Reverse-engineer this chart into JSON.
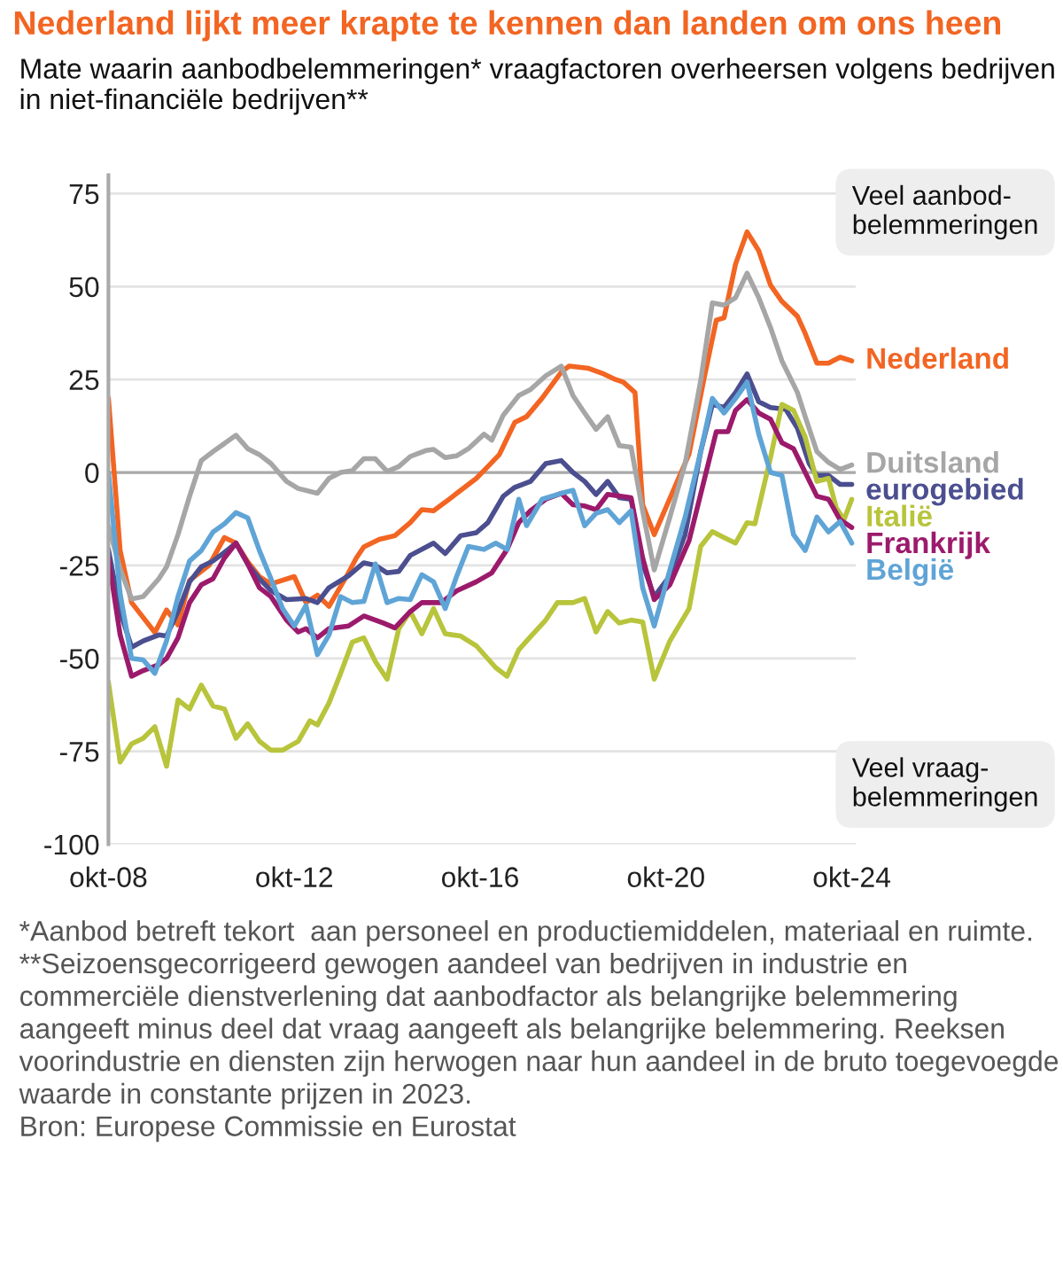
{
  "chart_data": {
    "type": "line",
    "title": "Nederland lijkt meer krapte te kennen dan landen om ons heen",
    "subtitle": "Mate waarin aanbodbelemmeringen* vraagfactoren overheersen volgens bedrijven in niet-financiële bedrijven**",
    "annotations": [
      "Veel aanbod-\nbelemmeringen",
      "Veel vraag-\nbelemmeringen",
      "*Aanbod betreft tekort  aan personeel en productiemiddelen, materiaal en ruimte.",
      "**Seizoensgecorrigeerd gewogen aandeel van bedrijven in industrie en commerciële dienstverlening dat aanbodfactor als belangrijke belemmering aangeeft minus deel dat vraag aangeeft als belangrijke belemmering. Reeksen voorindustrie en diensten zijn herwogen naar hun aandeel in de bruto toegevoegde waarde in constante prijzen in 2023.",
      "Bron: Europese Commissie en Eurostat"
    ],
    "xlim": [
      "2008-10",
      "2024-11"
    ],
    "xticks": [
      {
        "value": "2008-10",
        "label": "okt-08"
      },
      {
        "value": "2012-10",
        "label": "okt-12"
      },
      {
        "value": "2016-10",
        "label": "okt-16"
      },
      {
        "value": "2020-10",
        "label": "okt-20"
      },
      {
        "value": "2024-10",
        "label": "okt-24"
      }
    ],
    "ylim": [
      -100,
      80
    ],
    "yticks": [
      -100,
      -75,
      -50,
      -25,
      0,
      25,
      50,
      75
    ],
    "grid": "y",
    "ref_lines": [
      {
        "axis": "y",
        "value": 0,
        "color": "#aaaaaa"
      }
    ],
    "series": [
      {
        "name": "Nederland",
        "color": "#f26522",
        "x": [
          "2008-10",
          "2009-01",
          "2009-04",
          "2009-10",
          "2010-01",
          "2010-04",
          "2010-07",
          "2010-12",
          "2011-04",
          "2011-07",
          "2011-10",
          "2012-01",
          "2012-04",
          "2012-07",
          "2012-10",
          "2013-01",
          "2013-04",
          "2013-07",
          "2013-12",
          "2014-02",
          "2014-04",
          "2014-08",
          "2014-12",
          "2015-04",
          "2015-07",
          "2015-10",
          "2016-01",
          "2016-04",
          "2016-09",
          "2016-12",
          "2017-03",
          "2017-07",
          "2017-10",
          "2018-02",
          "2018-07",
          "2018-09",
          "2019-02",
          "2019-06",
          "2019-09",
          "2019-11",
          "2020-02",
          "2020-04",
          "2020-07",
          "2020-11",
          "2021-04",
          "2021-08",
          "2021-11",
          "2022-01",
          "2022-04",
          "2022-07",
          "2022-10",
          "2023-01",
          "2023-04",
          "2023-08",
          "2023-10",
          "2024-01",
          "2024-04",
          "2024-07",
          "2024-10"
        ],
        "values": [
          20,
          -21,
          -35,
          -43,
          -37,
          -41,
          -29,
          -25,
          -17.5,
          -19,
          -24,
          -28,
          -30,
          -29,
          -28,
          -35,
          -33,
          -36,
          -27,
          -23,
          -20,
          -18,
          -17,
          -13.5,
          -10,
          -10.3,
          -8,
          -5.6,
          -1.6,
          1.6,
          4.8,
          13.5,
          15,
          20,
          27,
          28.6,
          28,
          26.5,
          25,
          24.3,
          21.5,
          -8.7,
          -16.7,
          -7,
          5,
          26,
          41,
          41.6,
          56,
          64.7,
          59.6,
          50.4,
          46,
          42,
          37.4,
          29.4,
          29.4,
          31,
          30
        ]
      },
      {
        "name": "Duitsland",
        "color": "#a6a6a6",
        "x": [
          "2008-10",
          "2009-01",
          "2009-04",
          "2009-07",
          "2009-11",
          "2010-01",
          "2010-04",
          "2010-07",
          "2010-10",
          "2011-01",
          "2011-07",
          "2011-10",
          "2012-01",
          "2012-04",
          "2012-08",
          "2012-11",
          "2013-04",
          "2013-07",
          "2013-10",
          "2014-01",
          "2014-04",
          "2014-07",
          "2014-10",
          "2015-01",
          "2015-04",
          "2015-08",
          "2015-10",
          "2016-01",
          "2016-04",
          "2016-07",
          "2016-11",
          "2017-01",
          "2017-04",
          "2017-08",
          "2017-11",
          "2018-03",
          "2018-07",
          "2018-10",
          "2019-01",
          "2019-04",
          "2019-07",
          "2019-10",
          "2020-01",
          "2020-04",
          "2020-07",
          "2020-11",
          "2021-03",
          "2021-07",
          "2021-10",
          "2022-01",
          "2022-04",
          "2022-07",
          "2022-10",
          "2023-01",
          "2023-04",
          "2023-08",
          "2023-10",
          "2024-01",
          "2024-04",
          "2024-07",
          "2024-10"
        ],
        "values": [
          -14.3,
          -26,
          -34,
          -33.4,
          -28.6,
          -25.4,
          -16.7,
          -6.4,
          3.2,
          5.6,
          10,
          6.4,
          4.8,
          2.4,
          -2.4,
          -4.3,
          -5.6,
          -1.6,
          0,
          0.5,
          3.7,
          3.7,
          0.3,
          1.6,
          4.3,
          5.9,
          6.2,
          4,
          4.5,
          6.4,
          10.3,
          8.7,
          15.4,
          20.7,
          22.3,
          26,
          28.6,
          20.7,
          16,
          11.6,
          15,
          7.2,
          6.8,
          -10.3,
          -26.2,
          -12,
          2.4,
          24.6,
          45.6,
          45,
          47,
          53.6,
          47,
          39,
          30,
          21.5,
          15,
          5.6,
          2.7,
          0.8,
          2
        ]
      },
      {
        "name": "eurogebied",
        "color": "#4b4e8f",
        "x": [
          "2008-10",
          "2009-01",
          "2009-04",
          "2009-07",
          "2009-11",
          "2010-01",
          "2010-04",
          "2010-07",
          "2010-10",
          "2011-01",
          "2011-04",
          "2011-07",
          "2011-10",
          "2012-01",
          "2012-04",
          "2012-08",
          "2013-01",
          "2013-04",
          "2013-07",
          "2013-12",
          "2014-04",
          "2014-07",
          "2014-10",
          "2015-01",
          "2015-04",
          "2015-10",
          "2016-01",
          "2016-05",
          "2016-09",
          "2016-12",
          "2017-04",
          "2017-07",
          "2017-11",
          "2018-03",
          "2018-07",
          "2018-10",
          "2019-01",
          "2019-04",
          "2019-07",
          "2019-10",
          "2020-01",
          "2020-04",
          "2020-07",
          "2020-11",
          "2021-03",
          "2021-07",
          "2021-10",
          "2022-01",
          "2022-04",
          "2022-07",
          "2022-10",
          "2023-01",
          "2023-05",
          "2023-08",
          "2023-11",
          "2024-01",
          "2024-04",
          "2024-07",
          "2024-10"
        ],
        "values": [
          -20.7,
          -37.4,
          -47,
          -45.3,
          -43.7,
          -44,
          -37.4,
          -29.4,
          -25.4,
          -23.8,
          -21.5,
          -19,
          -24.6,
          -28.6,
          -31.8,
          -34.2,
          -33.9,
          -35,
          -31,
          -27.8,
          -24.3,
          -25,
          -27,
          -26.6,
          -22.3,
          -19,
          -21.8,
          -17,
          -16.2,
          -13.5,
          -6.4,
          -4,
          -2.4,
          2.4,
          3.2,
          0,
          -2.4,
          -5.9,
          -2.4,
          -6.8,
          -7.2,
          -24.6,
          -33.4,
          -27.8,
          -16.7,
          5.6,
          18.3,
          17.5,
          21.5,
          26.5,
          19,
          17.5,
          17,
          11.9,
          2.4,
          -0.8,
          -0.8,
          -3.2,
          -3.2
        ]
      },
      {
        "name": "Italië",
        "color": "#b8c43b",
        "x": [
          "2008-10",
          "2009-01",
          "2009-04",
          "2009-07",
          "2009-10",
          "2010-01",
          "2010-04",
          "2010-07",
          "2010-10",
          "2011-01",
          "2011-04",
          "2011-07",
          "2011-10",
          "2012-01",
          "2012-04",
          "2012-07",
          "2012-11",
          "2013-02",
          "2013-04",
          "2013-07",
          "2013-10",
          "2014-01",
          "2014-04",
          "2014-07",
          "2014-10",
          "2015-01",
          "2015-04",
          "2015-07",
          "2015-10",
          "2016-01",
          "2016-05",
          "2016-09",
          "2017-02",
          "2017-05",
          "2017-08",
          "2017-11",
          "2018-03",
          "2018-06",
          "2018-10",
          "2019-01",
          "2019-04",
          "2019-07",
          "2019-10",
          "2020-01",
          "2020-04",
          "2020-07",
          "2020-11",
          "2021-04",
          "2021-07",
          "2021-10",
          "2022-01",
          "2022-04",
          "2022-07",
          "2022-09",
          "2023-01",
          "2023-04",
          "2023-07",
          "2023-10",
          "2024-01",
          "2024-04",
          "2024-06",
          "2024-08",
          "2024-10"
        ],
        "values": [
          -56.4,
          -77.9,
          -73,
          -71.5,
          -68.4,
          -79,
          -61.2,
          -63.6,
          -57.2,
          -62.8,
          -63.6,
          -71.5,
          -67.6,
          -72.3,
          -74.7,
          -74.7,
          -72.3,
          -66.8,
          -67.9,
          -62,
          -54,
          -45.6,
          -44.5,
          -50.9,
          -55.6,
          -42,
          -37.4,
          -43.4,
          -36.6,
          -43.4,
          -44,
          -46.6,
          -52.5,
          -54.8,
          -47.7,
          -44.2,
          -39.7,
          -35,
          -35,
          -33.9,
          -42.9,
          -37.4,
          -40.5,
          -39.7,
          -40.2,
          -55.6,
          -45.3,
          -36.6,
          -19.9,
          -15.9,
          -17.5,
          -19,
          -13.5,
          -13.8,
          4,
          18.3,
          16.7,
          9.5,
          -2.4,
          -1.6,
          -9.5,
          -12.7,
          -7.2
        ]
      },
      {
        "name": "Frankrijk",
        "color": "#9c1a6b",
        "x": [
          "2008-10",
          "2009-01",
          "2009-04",
          "2009-07",
          "2009-11",
          "2010-01",
          "2010-04",
          "2010-07",
          "2010-10",
          "2011-01",
          "2011-04",
          "2011-07",
          "2011-10",
          "2012-01",
          "2012-04",
          "2012-08",
          "2012-11",
          "2013-01",
          "2013-04",
          "2013-07",
          "2013-12",
          "2014-04",
          "2014-09",
          "2014-12",
          "2015-04",
          "2015-07",
          "2015-12",
          "2016-04",
          "2016-09",
          "2017-01",
          "2017-05",
          "2017-08",
          "2017-11",
          "2018-03",
          "2018-07",
          "2018-10",
          "2019-01",
          "2019-04",
          "2019-07",
          "2020-01",
          "2020-04",
          "2020-07",
          "2020-11",
          "2021-04",
          "2021-08",
          "2021-11",
          "2022-02",
          "2022-04",
          "2022-07",
          "2022-10",
          "2023-01",
          "2023-04",
          "2023-07",
          "2023-10",
          "2024-01",
          "2024-04",
          "2024-07",
          "2024-10"
        ],
        "values": [
          -23,
          -43.7,
          -54.8,
          -53.3,
          -51.7,
          -50,
          -44.5,
          -35,
          -30.2,
          -28.6,
          -23,
          -19,
          -24.6,
          -31,
          -33.4,
          -39.7,
          -42.9,
          -42,
          -44.5,
          -42,
          -41.3,
          -38.6,
          -40.5,
          -41.8,
          -37.4,
          -35,
          -35,
          -31.8,
          -29.4,
          -27,
          -20.7,
          -13.5,
          -10.3,
          -7.2,
          -5.6,
          -8.7,
          -9,
          -10,
          -5.9,
          -6.8,
          -23,
          -34.2,
          -30.2,
          -18.3,
          -1.6,
          11,
          11,
          16.7,
          19.6,
          16,
          14.3,
          8,
          6.4,
          0,
          -6.4,
          -7.2,
          -12.7,
          -14.8
        ]
      },
      {
        "name": "België",
        "color": "#5fa4d6",
        "x": [
          "2008-10",
          "2009-01",
          "2009-04",
          "2009-07",
          "2009-10",
          "2010-01",
          "2010-04",
          "2010-07",
          "2010-10",
          "2011-01",
          "2011-04",
          "2011-07",
          "2011-10",
          "2012-01",
          "2012-04",
          "2012-07",
          "2012-10",
          "2013-01",
          "2013-04",
          "2013-07",
          "2013-10",
          "2014-01",
          "2014-04",
          "2014-07",
          "2014-10",
          "2015-01",
          "2015-04",
          "2015-07",
          "2015-10",
          "2016-01",
          "2016-04",
          "2016-07",
          "2016-11",
          "2017-02",
          "2017-05",
          "2017-08",
          "2017-10",
          "2018-02",
          "2018-07",
          "2018-10",
          "2019-01",
          "2019-04",
          "2019-07",
          "2019-10",
          "2020-01",
          "2020-04",
          "2020-07",
          "2020-11",
          "2021-03",
          "2021-07",
          "2021-10",
          "2022-01",
          "2022-04",
          "2022-07",
          "2022-10",
          "2023-01",
          "2023-04",
          "2023-07",
          "2023-10",
          "2024-01",
          "2024-04",
          "2024-07",
          "2024-10"
        ],
        "values": [
          0,
          -32.6,
          -50,
          -50.4,
          -54,
          -45.3,
          -33.4,
          -23.8,
          -21,
          -16,
          -13.8,
          -10.8,
          -12.2,
          -21,
          -28.6,
          -36.6,
          -41.3,
          -35.8,
          -49,
          -43.7,
          -33.4,
          -35,
          -34.7,
          -24.6,
          -35,
          -33.9,
          -34.2,
          -27.5,
          -29.4,
          -36.6,
          -27.8,
          -19.9,
          -20.7,
          -19,
          -20.7,
          -7.2,
          -14.3,
          -7.2,
          -5.6,
          -4.8,
          -14.3,
          -11,
          -10,
          -13.5,
          -10.3,
          -31,
          -41.3,
          -26.2,
          -12,
          5.6,
          19.9,
          16,
          19.9,
          24.3,
          10.3,
          0,
          -0.8,
          -16.7,
          -21,
          -12,
          -16,
          -13.2,
          -19
        ]
      }
    ]
  }
}
